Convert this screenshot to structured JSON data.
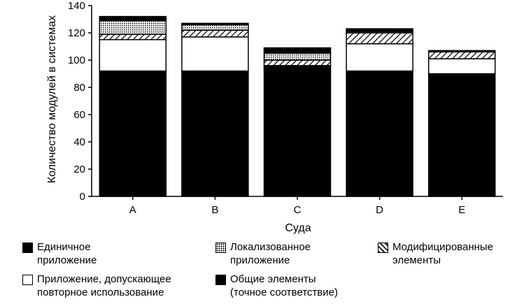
{
  "chart_data": {
    "type": "bar",
    "stacked": true,
    "categories": [
      "A",
      "B",
      "C",
      "D",
      "E"
    ],
    "xlabel": "Суда",
    "ylabel": "Количество модулей в системах",
    "ylim": [
      0,
      140
    ],
    "yticks": [
      0,
      20,
      40,
      60,
      80,
      100,
      120,
      140
    ],
    "grid": false,
    "legend_position": "bottom",
    "series": [
      {
        "key": "common",
        "name": "Общие элементы\n(точное соответствие)",
        "values": [
          92,
          92,
          96,
          92,
          90
        ],
        "fill": "solid-black"
      },
      {
        "key": "reusable",
        "name": "Приложение, допускающее\nповторное использование",
        "values": [
          23,
          25,
          0,
          20,
          11
        ],
        "fill": "white"
      },
      {
        "key": "modified",
        "name": "Модифицированные\nэлементы",
        "values": [
          4,
          5,
          4,
          8,
          5
        ],
        "fill": "diagonal-hatch"
      },
      {
        "key": "localized",
        "name": "Локализованное\nприложение",
        "values": [
          10,
          4,
          5,
          1,
          0
        ],
        "fill": "dotted"
      },
      {
        "key": "single",
        "name": "Единичное\nприложение",
        "values": [
          3,
          1,
          4,
          2,
          1
        ],
        "fill": "solid-black"
      }
    ]
  }
}
